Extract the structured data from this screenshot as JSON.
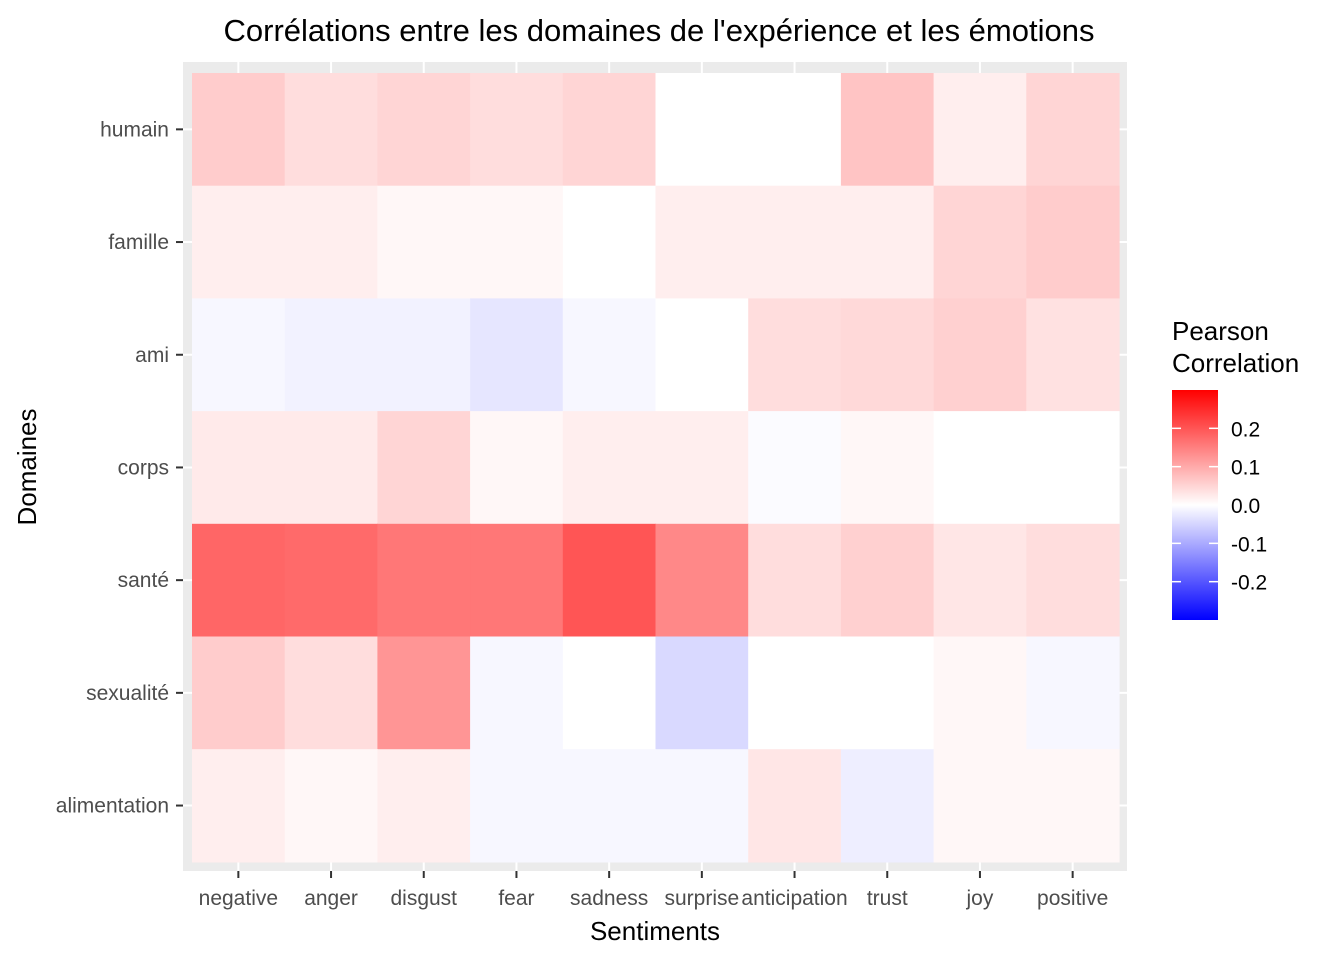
{
  "chart_data": {
    "type": "heatmap",
    "title": "Corrélations entre les domaines de l'expérience et les émotions",
    "xlabel": "Sentiments",
    "ylabel": "Domaines",
    "x_categories": [
      "negative",
      "anger",
      "disgust",
      "fear",
      "sadness",
      "surprise",
      "anticipation",
      "trust",
      "joy",
      "positive"
    ],
    "y_categories": [
      "humain",
      "famille",
      "ami",
      "corps",
      "santé",
      "sexualité",
      "alimentation"
    ],
    "values": [
      [
        0.06,
        0.04,
        0.05,
        0.04,
        0.05,
        0.0,
        0.0,
        0.07,
        0.02,
        0.05
      ],
      [
        0.02,
        0.02,
        0.01,
        0.01,
        0.0,
        0.02,
        0.02,
        0.02,
        0.05,
        0.06
      ],
      [
        -0.01,
        -0.015,
        -0.015,
        -0.03,
        -0.01,
        0.0,
        0.04,
        0.045,
        0.055,
        0.035
      ],
      [
        0.025,
        0.025,
        0.05,
        0.01,
        0.02,
        0.02,
        -0.005,
        0.01,
        0.0,
        0.0
      ],
      [
        0.18,
        0.175,
        0.16,
        0.16,
        0.2,
        0.14,
        0.04,
        0.055,
        0.03,
        0.04
      ],
      [
        0.06,
        0.04,
        0.125,
        -0.01,
        0.0,
        -0.045,
        0.0,
        0.0,
        0.01,
        -0.01
      ],
      [
        0.02,
        0.01,
        0.02,
        -0.01,
        -0.01,
        -0.01,
        0.03,
        -0.02,
        0.01,
        0.01
      ]
    ],
    "legend": {
      "title_lines": [
        "Pearson",
        "Correlation"
      ],
      "ticks": [
        0.2,
        0.1,
        0.0,
        -0.1,
        -0.2
      ],
      "tick_labels": [
        "0.2",
        "0.1",
        "0.0",
        "-0.1",
        "-0.2"
      ],
      "limits": [
        -0.3,
        0.3
      ],
      "colors": {
        "low": "#0000ff",
        "mid": "#ffffff",
        "high": "#ff0000"
      },
      "placement": "right"
    },
    "panel_background": "#ebebeb",
    "grid": true
  }
}
